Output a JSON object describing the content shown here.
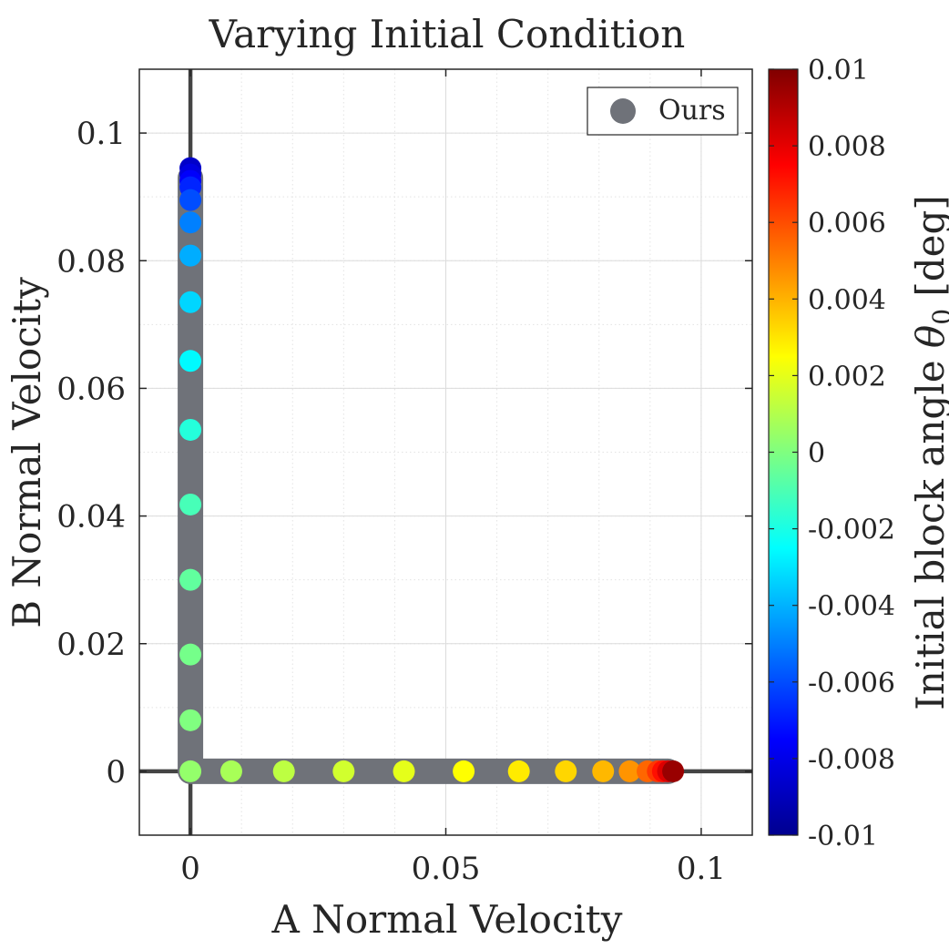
{
  "chart_data": {
    "type": "scatter",
    "title": "Varying Initial Condition",
    "xlabel": "A Normal Velocity",
    "ylabel": "B Normal Velocity",
    "xlim": [
      -0.01,
      0.11
    ],
    "ylim": [
      -0.01,
      0.11
    ],
    "x_ticks": [
      {
        "value": 0,
        "label": "0"
      },
      {
        "value": 0.05,
        "label": "0.05"
      },
      {
        "value": 0.1,
        "label": "0.1"
      }
    ],
    "y_ticks": [
      {
        "value": 0,
        "label": "0"
      },
      {
        "value": 0.02,
        "label": "0.02"
      },
      {
        "value": 0.04,
        "label": "0.04"
      },
      {
        "value": 0.06,
        "label": "0.06"
      },
      {
        "value": 0.08,
        "label": "0.08"
      },
      {
        "value": 0.1,
        "label": "0.1"
      }
    ],
    "grid": true,
    "minor_grid": true,
    "reference_lines": {
      "x": 0,
      "y": 0
    },
    "legend": {
      "entries": [
        "Ours"
      ],
      "placement": "top-right",
      "marker_color": "#6f7279"
    },
    "colorbar": {
      "label": "Initial block angle θ0 [deg]",
      "range": [
        -0.01,
        0.01
      ],
      "colormap": "jet",
      "ticks": [
        {
          "value": 0.01,
          "label": "0.01"
        },
        {
          "value": 0.008,
          "label": "0.008"
        },
        {
          "value": 0.006,
          "label": "0.006"
        },
        {
          "value": 0.004,
          "label": "0.004"
        },
        {
          "value": 0.002,
          "label": "0.002"
        },
        {
          "value": 0,
          "label": "0"
        },
        {
          "value": -0.002,
          "label": "-0.002"
        },
        {
          "value": -0.004,
          "label": "-0.004"
        },
        {
          "value": -0.006,
          "label": "-0.006"
        },
        {
          "value": -0.008,
          "label": "-0.008"
        },
        {
          "value": -0.01,
          "label": "-0.01"
        }
      ]
    },
    "series": [
      {
        "name": "Ours",
        "note": "dense gray band of samples along both axes",
        "color": "#6f7279",
        "path": [
          [
            0,
            0.093
          ],
          [
            0,
            0
          ],
          [
            0.0935,
            0
          ]
        ]
      },
      {
        "name": "Initial angle samples",
        "points": [
          {
            "x": 0.0,
            "y": 0.0945,
            "theta": -0.0087
          },
          {
            "x": 0.0,
            "y": 0.0935,
            "theta": -0.0082
          },
          {
            "x": 0.0,
            "y": 0.0925,
            "theta": -0.0076
          },
          {
            "x": 0.0,
            "y": 0.0915,
            "theta": -0.0068
          },
          {
            "x": 0.0,
            "y": 0.0895,
            "theta": -0.006
          },
          {
            "x": 0.0,
            "y": 0.086,
            "theta": -0.005
          },
          {
            "x": 0.0,
            "y": 0.0808,
            "theta": -0.0041
          },
          {
            "x": 0.0,
            "y": 0.0735,
            "theta": -0.0033
          },
          {
            "x": 0.0,
            "y": 0.0643,
            "theta": -0.0026
          },
          {
            "x": 0.0,
            "y": 0.0535,
            "theta": -0.0018
          },
          {
            "x": 0.0,
            "y": 0.0418,
            "theta": -0.0011
          },
          {
            "x": 0.0,
            "y": 0.03,
            "theta": -0.0006
          },
          {
            "x": 0.0,
            "y": 0.0183,
            "theta": -0.0002
          },
          {
            "x": 0.0,
            "y": 0.008,
            "theta": 0.0
          },
          {
            "x": 0.0,
            "y": 0.0,
            "theta": 0.0004
          },
          {
            "x": 0.008,
            "y": 0.0,
            "theta": 0.0008
          },
          {
            "x": 0.0183,
            "y": 0.0,
            "theta": 0.0012
          },
          {
            "x": 0.03,
            "y": 0.0,
            "theta": 0.0016
          },
          {
            "x": 0.0418,
            "y": 0.0,
            "theta": 0.002
          },
          {
            "x": 0.0535,
            "y": 0.0,
            "theta": 0.0025
          },
          {
            "x": 0.0643,
            "y": 0.0,
            "theta": 0.0029
          },
          {
            "x": 0.0735,
            "y": 0.0,
            "theta": 0.0033
          },
          {
            "x": 0.0808,
            "y": 0.0,
            "theta": 0.0039
          },
          {
            "x": 0.086,
            "y": 0.0,
            "theta": 0.0046
          },
          {
            "x": 0.0895,
            "y": 0.0,
            "theta": 0.0055
          },
          {
            "x": 0.0915,
            "y": 0.0,
            "theta": 0.0064
          },
          {
            "x": 0.0925,
            "y": 0.0,
            "theta": 0.0072
          },
          {
            "x": 0.0935,
            "y": 0.0,
            "theta": 0.0082
          },
          {
            "x": 0.0945,
            "y": 0.0,
            "theta": 0.0095
          }
        ]
      }
    ]
  }
}
